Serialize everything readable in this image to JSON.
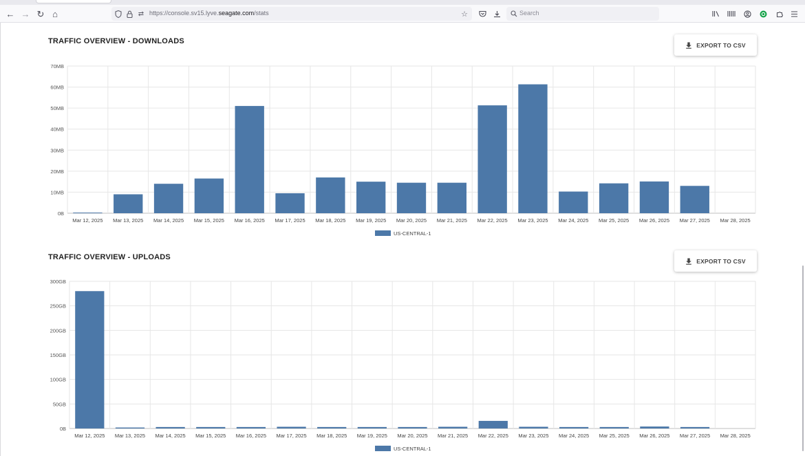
{
  "browser": {
    "url_prefix": "https://console.sv15.lyve.",
    "url_domain": "seagate.com",
    "url_suffix": "/stats",
    "search_placeholder": "Search"
  },
  "downloads": {
    "title": "TRAFFIC OVERVIEW - DOWNLOADS",
    "export_label": "EXPORT TO CSV",
    "chart_data": {
      "type": "bar",
      "categories": [
        "Mar 12, 2025",
        "Mar 13, 2025",
        "Mar 14, 2025",
        "Mar 15, 2025",
        "Mar 16, 2025",
        "Mar 17, 2025",
        "Mar 18, 2025",
        "Mar 19, 2025",
        "Mar 20, 2025",
        "Mar 21, 2025",
        "Mar 22, 2025",
        "Mar 23, 2025",
        "Mar 24, 2025",
        "Mar 25, 2025",
        "Mar 26, 2025",
        "Mar 27, 2025",
        "Mar 28, 2025"
      ],
      "series": [
        {
          "name": "US-CENTRAL-1",
          "values": [
            0.3,
            9,
            14,
            16.5,
            51,
            9.5,
            17,
            15,
            14.5,
            14.5,
            51.3,
            61.3,
            10.3,
            14.2,
            15.1,
            13,
            0
          ]
        }
      ],
      "yticks": [
        "0B",
        "10MB",
        "20MB",
        "30MB",
        "40MB",
        "50MB",
        "60MB",
        "70MB"
      ],
      "ylim": [
        0,
        70
      ],
      "unit": "MB",
      "grid": true,
      "legend_position": "bottom",
      "color": "#4c78a8"
    }
  },
  "uploads": {
    "title": "TRAFFIC OVERVIEW - UPLOADS",
    "export_label": "EXPORT TO CSV",
    "chart_data": {
      "type": "bar",
      "categories": [
        "Mar 12, 2025",
        "Mar 13, 2025",
        "Mar 14, 2025",
        "Mar 15, 2025",
        "Mar 16, 2025",
        "Mar 17, 2025",
        "Mar 18, 2025",
        "Mar 19, 2025",
        "Mar 20, 2025",
        "Mar 21, 2025",
        "Mar 22, 2025",
        "Mar 23, 2025",
        "Mar 24, 2025",
        "Mar 25, 2025",
        "Mar 26, 2025",
        "Mar 27, 2025",
        "Mar 28, 2025"
      ],
      "series": [
        {
          "name": "US-CENTRAL-1",
          "values": [
            280,
            2,
            3,
            3,
            3,
            3.5,
            3,
            3,
            3,
            3.5,
            15.5,
            3.5,
            3,
            3,
            4,
            3,
            0
          ]
        }
      ],
      "yticks": [
        "0B",
        "50GB",
        "100GB",
        "150GB",
        "200GB",
        "250GB",
        "300GB"
      ],
      "ylim": [
        0,
        300
      ],
      "unit": "GB",
      "grid": true,
      "legend_position": "bottom",
      "color": "#4c78a8"
    }
  }
}
